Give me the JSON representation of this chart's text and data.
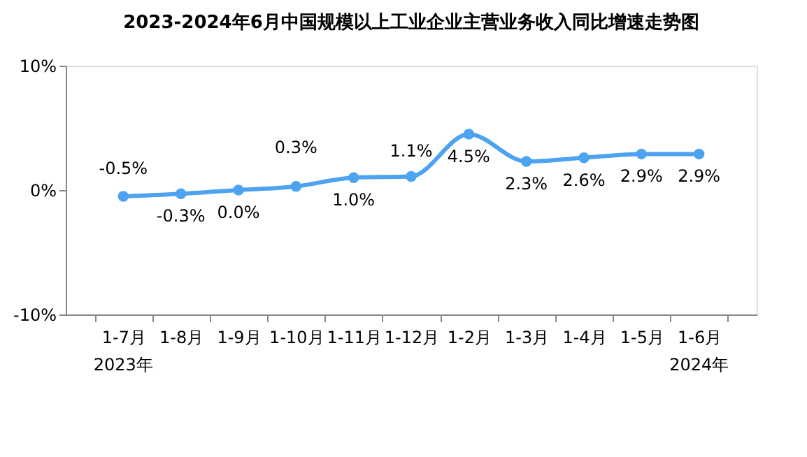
{
  "chart_data": {
    "type": "line",
    "title": "2023-2024年6月中国规模以上工业企业主营业务收入同比增速走势图",
    "categories": [
      "1-7月",
      "1-8月",
      "1-9月",
      "1-10月",
      "1-11月",
      "1-12月",
      "1-2月",
      "1-3月",
      "1-4月",
      "1-5月",
      "1-6月"
    ],
    "series": [
      {
        "color": "#4da3f0",
        "values": [
          -0.5,
          -0.3,
          0.0,
          0.3,
          1.0,
          1.1,
          4.5,
          2.3,
          2.6,
          2.9,
          2.9
        ],
        "value_labels": [
          "-0.5%",
          "-0.3%",
          "0.0%",
          "0.3%",
          "1.0%",
          "1.1%",
          "4.5%",
          "2.3%",
          "2.6%",
          "2.9%",
          "2.9%"
        ]
      }
    ],
    "ylim": [
      -10,
      10
    ],
    "yticks": [
      {
        "value": -10,
        "label": "-10%"
      },
      {
        "value": 0,
        "label": "0%"
      },
      {
        "value": 10,
        "label": "10%"
      }
    ],
    "annotations": [
      "2023年",
      "2024年"
    ],
    "marker": "circle",
    "grid": false
  }
}
